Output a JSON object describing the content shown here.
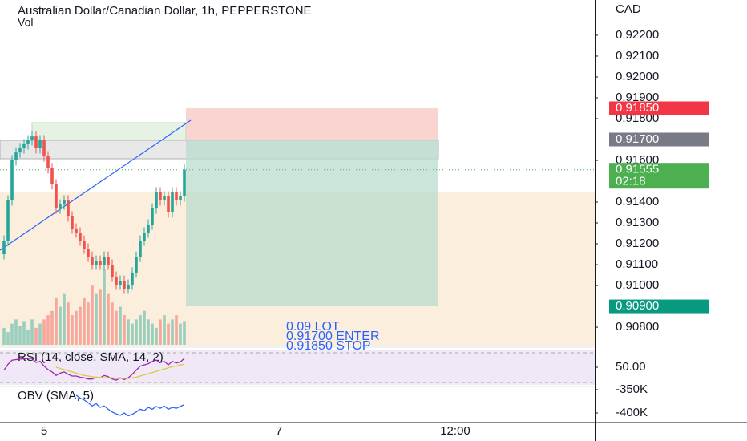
{
  "chart_data": [
    {
      "type": "candlestick",
      "title": "Australian Dollar/Canadian Dollar, 1h, PEPPERSTONE",
      "subtitle": "Vol",
      "axis_unit": "CAD",
      "open": [
        0.9115,
        0.91215,
        0.91408,
        0.916,
        0.91638,
        0.91658,
        0.91677,
        0.91696,
        0.91715,
        0.91658,
        0.91696,
        0.91619,
        0.91562,
        0.91485,
        0.91369,
        0.91388,
        0.91408,
        0.91331,
        0.91273,
        0.91254,
        0.91215,
        0.91177,
        0.91138,
        0.911,
        0.91119,
        0.911,
        0.91138,
        0.911,
        0.91042,
        0.91004,
        0.91023,
        0.90985,
        0.91004,
        0.91062,
        0.91138,
        0.91215,
        0.91254,
        0.91292,
        0.91369,
        0.91446,
        0.91408,
        0.91427,
        0.9135,
        0.91446,
        0.91408,
        0.91427
      ],
      "high": [
        0.9124,
        0.91433,
        0.91625,
        0.91663,
        0.91683,
        0.91702,
        0.91721,
        0.9174,
        0.9174,
        0.91721,
        0.91721,
        0.91644,
        0.91587,
        0.9151,
        0.91413,
        0.91433,
        0.91433,
        0.91356,
        0.91298,
        0.91279,
        0.9124,
        0.91202,
        0.91163,
        0.91144,
        0.91144,
        0.91163,
        0.91163,
        0.91125,
        0.91067,
        0.91048,
        0.91048,
        0.91029,
        0.91087,
        0.91163,
        0.9124,
        0.91279,
        0.91317,
        0.91394,
        0.91471,
        0.91471,
        0.91452,
        0.91452,
        0.91471,
        0.91471,
        0.91452,
        0.9158
      ],
      "low": [
        0.91125,
        0.9119,
        0.91383,
        0.91575,
        0.91613,
        0.91633,
        0.91652,
        0.91671,
        0.91633,
        0.91633,
        0.91594,
        0.91537,
        0.9146,
        0.91344,
        0.91344,
        0.91363,
        0.91306,
        0.91248,
        0.91229,
        0.9119,
        0.91152,
        0.91113,
        0.91075,
        0.91075,
        0.91075,
        0.91075,
        0.91075,
        0.91017,
        0.90979,
        0.90979,
        0.9096,
        0.9096,
        0.90979,
        0.91037,
        0.91113,
        0.9119,
        0.91229,
        0.91267,
        0.91344,
        0.91383,
        0.91383,
        0.91325,
        0.91325,
        0.91383,
        0.91383,
        0.91402
      ],
      "close": [
        0.91215,
        0.91408,
        0.916,
        0.91638,
        0.91658,
        0.91677,
        0.91696,
        0.91715,
        0.91658,
        0.91696,
        0.91619,
        0.91562,
        0.91485,
        0.91369,
        0.91388,
        0.91408,
        0.91331,
        0.91273,
        0.91254,
        0.91215,
        0.91177,
        0.91138,
        0.911,
        0.91119,
        0.911,
        0.91138,
        0.911,
        0.91042,
        0.91004,
        0.91023,
        0.90985,
        0.91004,
        0.91062,
        0.91138,
        0.91215,
        0.91254,
        0.91292,
        0.91369,
        0.91446,
        0.91408,
        0.91427,
        0.9135,
        0.91446,
        0.91408,
        0.91427,
        0.91555
      ],
      "volume": [
        20,
        15,
        25,
        30,
        22,
        28,
        18,
        30,
        20,
        25,
        30,
        35,
        40,
        55,
        45,
        60,
        50,
        35,
        40,
        45,
        55,
        50,
        70,
        60,
        65,
        90,
        60,
        50,
        40,
        45,
        35,
        30,
        25,
        30,
        35,
        40,
        30,
        25,
        20,
        30,
        35,
        25,
        30,
        35,
        25,
        28
      ],
      "up_color": "#26a69a",
      "down_color": "#ef5350",
      "ylim": [
        0.90708,
        0.92369
      ],
      "yticks": [
        {
          "value": 0.922,
          "label": "0.92200"
        },
        {
          "value": 0.921,
          "label": "0.92100"
        },
        {
          "value": 0.92,
          "label": "0.92000"
        },
        {
          "value": 0.919,
          "label": "0.91900"
        },
        {
          "value": 0.918,
          "label": "0.91800"
        },
        {
          "value": 0.916,
          "label": "0.91600"
        },
        {
          "value": 0.914,
          "label": "0.91400"
        },
        {
          "value": 0.913,
          "label": "0.91300"
        },
        {
          "value": 0.912,
          "label": "0.91200"
        },
        {
          "value": 0.911,
          "label": "0.91100"
        },
        {
          "value": 0.91,
          "label": "0.91000"
        },
        {
          "value": 0.908,
          "label": "0.90800"
        }
      ],
      "price_tags": [
        {
          "role": "stop",
          "value": 0.9185,
          "label": "0.91850",
          "color": "#f23645"
        },
        {
          "role": "entry",
          "value": 0.917,
          "label": "0.91700",
          "color": "#787b86"
        },
        {
          "role": "last",
          "value": 0.91555,
          "label": "0.91555",
          "countdown": "02:18",
          "color": "#4caf50"
        },
        {
          "role": "target",
          "value": 0.909,
          "label": "0.90900",
          "color": "#089981"
        }
      ],
      "annotations": [
        "0.09 LOT",
        "0.91700 ENTER",
        "0.91850 STOP"
      ],
      "x_labels": [
        "5",
        "7",
        "12:00"
      ]
    },
    {
      "type": "line",
      "title": "RSI (14, close, SMA, 14, 2)",
      "series": [
        {
          "color": "#9c27b0",
          "values": [
            45,
            55,
            62,
            63,
            64,
            64,
            65,
            65,
            58,
            60,
            52,
            46,
            42,
            36,
            40,
            42,
            38,
            35,
            35,
            33,
            32,
            30,
            30,
            33,
            32,
            36,
            34,
            30,
            28,
            32,
            29,
            32,
            38,
            45,
            52,
            54,
            56,
            60,
            62,
            58,
            60,
            54,
            60,
            57,
            59,
            65
          ]
        },
        {
          "color": "#d6cf3c",
          "values": [
            null,
            null,
            null,
            null,
            null,
            null,
            null,
            null,
            null,
            null,
            null,
            null,
            null,
            50,
            48,
            46,
            44,
            42,
            40,
            38,
            36,
            35,
            34,
            33,
            33,
            32,
            32,
            32,
            31,
            31,
            31,
            31,
            32,
            33,
            35,
            37,
            39,
            41,
            43,
            45,
            47,
            49,
            51,
            52,
            54,
            55
          ]
        }
      ],
      "ylim": [
        20,
        80
      ],
      "yticks": [
        {
          "value": 50,
          "label": "50.00"
        }
      ]
    },
    {
      "type": "line",
      "title": "OBV (SMA, 5)",
      "series": [
        {
          "color": "#2962ff",
          "values": [
            null,
            null,
            null,
            null,
            null,
            null,
            null,
            null,
            null,
            null,
            null,
            null,
            null,
            null,
            null,
            null,
            null,
            null,
            -362000,
            -368000,
            -372000,
            -378000,
            -385000,
            -380000,
            -388000,
            -385000,
            -392000,
            -398000,
            -402000,
            -405000,
            -400000,
            -406000,
            -403000,
            -398000,
            -392000,
            -395000,
            -388000,
            -392000,
            -386000,
            -390000,
            -385000,
            -392000,
            -388000,
            -390000,
            -386000,
            -382000
          ]
        }
      ],
      "ylim": [
        -420690,
        -346552
      ],
      "yticks": [
        {
          "value": -350000,
          "label": "-350K"
        },
        {
          "value": -400000,
          "label": "-400K"
        }
      ]
    }
  ]
}
